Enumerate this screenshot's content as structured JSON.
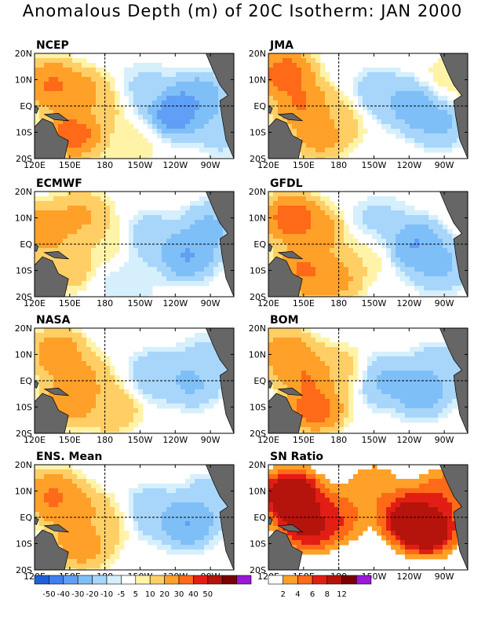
{
  "title": "Anomalous Depth (m) of 20C Isotherm: JAN 2000",
  "lon_ticks": [
    "120E",
    "150E",
    "180",
    "150W",
    "120W",
    "90W"
  ],
  "lat_ticks": [
    "20N",
    "10N",
    "EQ",
    "10S",
    "20S"
  ],
  "colors": {
    "anomaly_scale": [
      "#1f5fd8",
      "#3f7ff0",
      "#5f9ff5",
      "#7fbff7",
      "#a8d6fb",
      "#d6effd",
      "#ffffff",
      "#fff3a8",
      "#ffcf66",
      "#ffa028",
      "#ff6a18",
      "#e21e14",
      "#b4140c",
      "#7c0000",
      "#9a18d8"
    ],
    "sn_scale": [
      "#ffffff",
      "#ffa028",
      "#ff6a18",
      "#e21e14",
      "#b4140c",
      "#7c0000",
      "#9a18d8"
    ],
    "land": "#666666"
  },
  "chart_data": [
    {
      "type": "heatmap",
      "title": "NCEP",
      "lon_range": [
        120,
        290
      ],
      "lat_range": [
        -20,
        20
      ],
      "features": [
        {
          "lon": 135,
          "lat": 8,
          "value": 35
        },
        {
          "lon": 160,
          "lat": 4,
          "value": 30
        },
        {
          "lon": 155,
          "lat": -10,
          "value": 40
        },
        {
          "lon": 175,
          "lat": 0,
          "value": 15
        },
        {
          "lon": 215,
          "lat": 6,
          "value": -15
        },
        {
          "lon": 240,
          "lat": -2,
          "value": -45
        },
        {
          "lon": 260,
          "lat": 3,
          "value": -30
        },
        {
          "lon": 280,
          "lat": -8,
          "value": -20
        },
        {
          "lon": 200,
          "lat": -15,
          "value": 10
        }
      ]
    },
    {
      "type": "heatmap",
      "title": "JMA",
      "lon_range": [
        120,
        290
      ],
      "lat_range": [
        -20,
        20
      ],
      "features": [
        {
          "lon": 135,
          "lat": 12,
          "value": 40
        },
        {
          "lon": 150,
          "lat": 0,
          "value": 35
        },
        {
          "lon": 165,
          "lat": -10,
          "value": 30
        },
        {
          "lon": 180,
          "lat": -4,
          "value": 15
        },
        {
          "lon": 215,
          "lat": 4,
          "value": -20
        },
        {
          "lon": 245,
          "lat": 0,
          "value": -30
        },
        {
          "lon": 265,
          "lat": -6,
          "value": -25
        },
        {
          "lon": 275,
          "lat": 10,
          "value": 10
        }
      ]
    },
    {
      "type": "heatmap",
      "title": "ECMWF",
      "lon_range": [
        120,
        290
      ],
      "lat_range": [
        -20,
        20
      ],
      "features": [
        {
          "lon": 130,
          "lat": 6,
          "value": 30
        },
        {
          "lon": 160,
          "lat": 10,
          "value": 25
        },
        {
          "lon": 145,
          "lat": -8,
          "value": 20
        },
        {
          "lon": 180,
          "lat": 0,
          "value": 10
        },
        {
          "lon": 220,
          "lat": 2,
          "value": -20
        },
        {
          "lon": 250,
          "lat": -4,
          "value": -35
        },
        {
          "lon": 270,
          "lat": 6,
          "value": -25
        },
        {
          "lon": 200,
          "lat": -14,
          "value": -10
        }
      ]
    },
    {
      "type": "heatmap",
      "title": "GFDL",
      "lon_range": [
        120,
        290
      ],
      "lat_range": [
        -20,
        20
      ],
      "features": [
        {
          "lon": 140,
          "lat": 10,
          "value": 40
        },
        {
          "lon": 160,
          "lat": 4,
          "value": 30
        },
        {
          "lon": 150,
          "lat": -10,
          "value": 35
        },
        {
          "lon": 175,
          "lat": -12,
          "value": 30
        },
        {
          "lon": 215,
          "lat": 8,
          "value": -15
        },
        {
          "lon": 245,
          "lat": 0,
          "value": -35
        },
        {
          "lon": 265,
          "lat": -8,
          "value": -25
        },
        {
          "lon": 200,
          "lat": -4,
          "value": 10
        }
      ]
    },
    {
      "type": "heatmap",
      "title": "NASA",
      "lon_range": [
        120,
        290
      ],
      "lat_range": [
        -20,
        20
      ],
      "features": [
        {
          "lon": 140,
          "lat": 10,
          "value": 30
        },
        {
          "lon": 160,
          "lat": 0,
          "value": 25
        },
        {
          "lon": 150,
          "lat": -8,
          "value": 30
        },
        {
          "lon": 185,
          "lat": -10,
          "value": 20
        },
        {
          "lon": 225,
          "lat": 2,
          "value": -20
        },
        {
          "lon": 255,
          "lat": 0,
          "value": -25
        },
        {
          "lon": 270,
          "lat": 8,
          "value": -15
        }
      ]
    },
    {
      "type": "heatmap",
      "title": "BOM",
      "lon_range": [
        120,
        290
      ],
      "lat_range": [
        -20,
        20
      ],
      "features": [
        {
          "lon": 135,
          "lat": 10,
          "value": 30
        },
        {
          "lon": 155,
          "lat": 2,
          "value": 35
        },
        {
          "lon": 160,
          "lat": -10,
          "value": 40
        },
        {
          "lon": 180,
          "lat": 4,
          "value": 15
        },
        {
          "lon": 220,
          "lat": 0,
          "value": -25
        },
        {
          "lon": 250,
          "lat": -4,
          "value": -30
        },
        {
          "lon": 265,
          "lat": 4,
          "value": -20
        }
      ]
    },
    {
      "type": "heatmap",
      "title": "ENS. Mean",
      "lon_range": [
        120,
        290
      ],
      "lat_range": [
        -20,
        20
      ],
      "features": [
        {
          "lon": 135,
          "lat": 8,
          "value": 35
        },
        {
          "lon": 155,
          "lat": 2,
          "value": 30
        },
        {
          "lon": 160,
          "lat": -10,
          "value": 30
        },
        {
          "lon": 180,
          "lat": -2,
          "value": 15
        },
        {
          "lon": 220,
          "lat": 2,
          "value": -20
        },
        {
          "lon": 250,
          "lat": -2,
          "value": -35
        },
        {
          "lon": 270,
          "lat": 6,
          "value": -20
        }
      ]
    },
    {
      "type": "heatmap",
      "title": "SN Ratio",
      "lon_range": [
        120,
        290
      ],
      "lat_range": [
        -20,
        20
      ],
      "features": [
        {
          "lon": 140,
          "lat": 8,
          "value": 12
        },
        {
          "lon": 155,
          "lat": -2,
          "value": 10
        },
        {
          "lon": 175,
          "lat": 0,
          "value": 6
        },
        {
          "lon": 210,
          "lat": 10,
          "value": 4
        },
        {
          "lon": 240,
          "lat": 0,
          "value": 10
        },
        {
          "lon": 255,
          "lat": -4,
          "value": 12
        },
        {
          "lon": 270,
          "lat": 8,
          "value": 6
        }
      ]
    }
  ],
  "colorbars": {
    "anomaly": {
      "labels": [
        "-50",
        "-40",
        "-30",
        "-20",
        "-10",
        "-5",
        "5",
        "10",
        "20",
        "30",
        "40",
        "50"
      ]
    },
    "sn": {
      "labels": [
        "2",
        "4",
        "6",
        "8",
        "12"
      ]
    }
  }
}
